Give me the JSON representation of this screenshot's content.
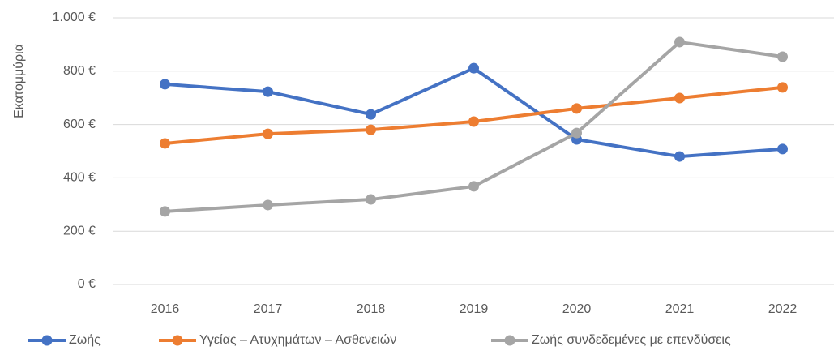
{
  "chart_data": {
    "type": "line",
    "y_label": "Εκατομμύρια",
    "categories": [
      "2016",
      "2017",
      "2018",
      "2019",
      "2020",
      "2021",
      "2022"
    ],
    "series": [
      {
        "name": "Ζωής",
        "color": "#4472c4",
        "values": [
          751,
          723,
          638,
          811,
          544,
          480,
          508
        ]
      },
      {
        "name": "Υγείας – Ατυχημάτων – Ασθενειών",
        "color": "#ed7d31",
        "values": [
          529,
          565,
          580,
          611,
          660,
          699,
          739
        ]
      },
      {
        "name": "Ζωής συνδεδεμένες με επενδύσεις",
        "color": "#a5a5a5",
        "values": [
          274,
          298,
          319,
          368,
          568,
          909,
          854
        ]
      }
    ],
    "ylim": [
      0,
      1000
    ],
    "yticks": [
      {
        "value": 0,
        "label": "0 €"
      },
      {
        "value": 200,
        "label": "200 €"
      },
      {
        "value": 400,
        "label": "400 €"
      },
      {
        "value": 600,
        "label": "600 €"
      },
      {
        "value": 800,
        "label": "800 €"
      },
      {
        "value": 1000,
        "label": "1.000 €"
      }
    ],
    "grid": true,
    "legend": "bottom"
  }
}
